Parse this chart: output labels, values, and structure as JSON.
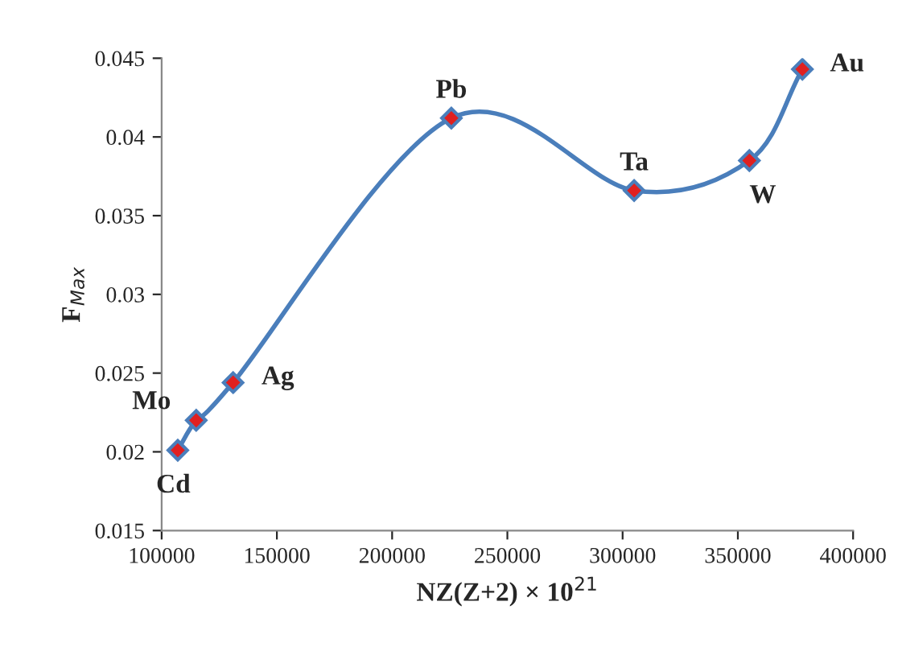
{
  "chart_data": {
    "type": "line",
    "xlabel": "NZ(Z+2) × 10$^{21}$",
    "ylabel": "F$_{Max}$",
    "x": [
      107000,
      115000,
      131000,
      225700,
      305000,
      355000,
      378000
    ],
    "series": [
      {
        "color": "#4a7ebb",
        "values": [
          0.0201,
          0.022,
          0.0244,
          0.0412,
          0.0366,
          0.0385,
          0.0443
        ]
      }
    ],
    "xlim": [
      100000,
      400000
    ],
    "xticks": [
      100000,
      150000,
      200000,
      250000,
      300000,
      350000,
      400000
    ],
    "ylim": [
      0.015,
      0.045
    ],
    "yticks": [
      0.015,
      0.02,
      0.025,
      0.03,
      0.035,
      0.04,
      0.045
    ],
    "marker": "diamond",
    "line_style": "solid",
    "grid": false,
    "legend": false,
    "annotations": [
      {
        "text": "Cd",
        "x": 107000,
        "y": 0.0201
      },
      {
        "text": "Mo",
        "x": 115000,
        "y": 0.022
      },
      {
        "text": "Ag",
        "x": 131000,
        "y": 0.0244
      },
      {
        "text": "Pb",
        "x": 225700,
        "y": 0.0412
      },
      {
        "text": "Ta",
        "x": 305000,
        "y": 0.0366
      },
      {
        "text": "W",
        "x": 355000,
        "y": 0.0385
      },
      {
        "text": "Au",
        "x": 378000,
        "y": 0.0443
      }
    ]
  }
}
